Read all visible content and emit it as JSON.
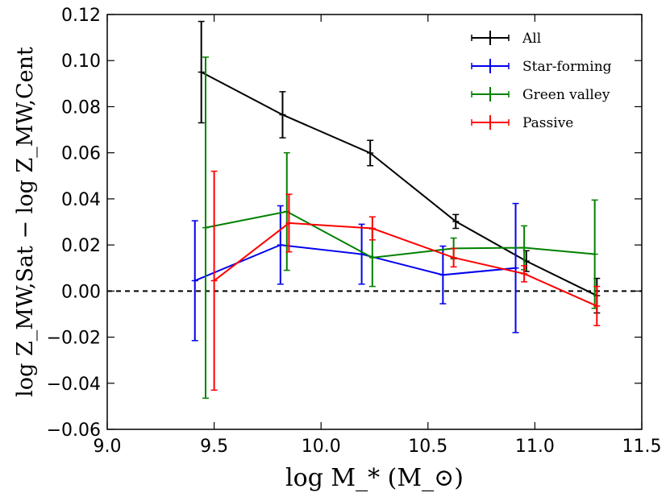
{
  "chart_data": {
    "type": "line",
    "title": "",
    "xlabel": "log M_* (M_⊙)",
    "ylabel": "log Z_MW,Sat − log Z_MW,Cent",
    "xlim": [
      9.0,
      11.5
    ],
    "ylim": [
      -0.06,
      0.12
    ],
    "x_ticks": [
      9.0,
      9.5,
      10.0,
      10.5,
      11.0,
      11.5
    ],
    "y_ticks": [
      -0.06,
      -0.04,
      -0.02,
      0.0,
      0.02,
      0.04,
      0.06,
      0.08,
      0.1,
      0.12
    ],
    "x_tick_labels": [
      "9.0",
      "9.5",
      "10.0",
      "10.5",
      "11.0",
      "11.5"
    ],
    "y_tick_labels": [
      "−0.06",
      "−0.04",
      "−0.02",
      "0.00",
      "0.02",
      "0.04",
      "0.06",
      "0.08",
      "0.10",
      "0.12"
    ],
    "reference_line": {
      "y": 0.0,
      "style": "dashed",
      "color": "#000000"
    },
    "legend_position": "top-right",
    "grid": false,
    "series": [
      {
        "name": "All",
        "color": "#000000",
        "x": [
          9.44,
          9.82,
          10.23,
          10.63,
          10.96,
          11.29
        ],
        "y": [
          0.095,
          0.0765,
          0.0599,
          0.0302,
          0.013,
          -0.002
        ],
        "err": [
          0.022,
          0.01,
          0.0055,
          0.003,
          0.0045,
          0.0075
        ]
      },
      {
        "name": "Star-forming",
        "color": "#0000ee",
        "x": [
          9.41,
          9.81,
          10.19,
          10.57,
          10.91
        ],
        "y": [
          0.0045,
          0.02,
          0.016,
          0.007,
          0.01
        ],
        "err": [
          0.026,
          0.017,
          0.013,
          0.0125,
          0.028
        ]
      },
      {
        "name": "Green valley",
        "color": "#008000",
        "x": [
          9.46,
          9.84,
          10.24,
          10.62,
          10.95,
          11.28
        ],
        "y": [
          0.0275,
          0.0345,
          0.0145,
          0.0185,
          0.0188,
          0.016
        ],
        "err": [
          0.074,
          0.0255,
          0.0125,
          0.0045,
          0.0095,
          0.0235
        ]
      },
      {
        "name": "Passive",
        "color": "#ff0000",
        "x": [
          9.5,
          9.85,
          10.24,
          10.62,
          10.95,
          11.29
        ],
        "y": [
          0.0045,
          0.0295,
          0.0272,
          0.0145,
          0.0075,
          -0.0065
        ],
        "err": [
          0.0475,
          0.0125,
          0.005,
          0.004,
          0.0035,
          0.0085
        ]
      }
    ]
  }
}
